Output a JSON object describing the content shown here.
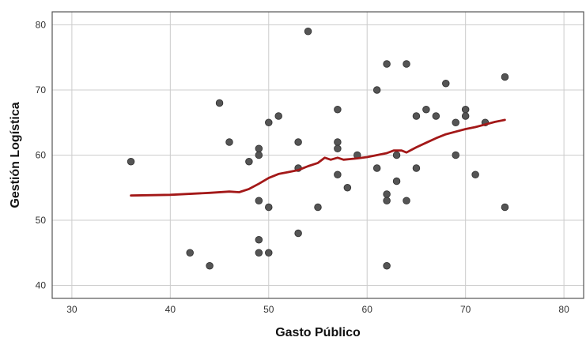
{
  "chart_data": {
    "type": "scatter",
    "xlabel": "Gasto Público",
    "ylabel": "Gestión Logística",
    "xlim": [
      28,
      82
    ],
    "ylim": [
      38,
      82
    ],
    "x_ticks": [
      30,
      40,
      50,
      60,
      70,
      80
    ],
    "y_ticks": [
      40,
      50,
      60,
      70,
      80
    ],
    "grid": true,
    "legend": "none",
    "colors": {
      "points": "#555555",
      "fit_line": "#a31818",
      "grid": "#cccccc",
      "axis": "#555555"
    },
    "points": [
      {
        "x": 36,
        "y": 59
      },
      {
        "x": 42,
        "y": 45
      },
      {
        "x": 44,
        "y": 43
      },
      {
        "x": 45,
        "y": 68
      },
      {
        "x": 46,
        "y": 62
      },
      {
        "x": 48,
        "y": 59
      },
      {
        "x": 49,
        "y": 61
      },
      {
        "x": 49,
        "y": 60
      },
      {
        "x": 49,
        "y": 53
      },
      {
        "x": 49,
        "y": 47
      },
      {
        "x": 49,
        "y": 45
      },
      {
        "x": 50,
        "y": 65
      },
      {
        "x": 50,
        "y": 52
      },
      {
        "x": 50,
        "y": 45
      },
      {
        "x": 51,
        "y": 66
      },
      {
        "x": 53,
        "y": 62
      },
      {
        "x": 53,
        "y": 58
      },
      {
        "x": 53,
        "y": 48
      },
      {
        "x": 54,
        "y": 79
      },
      {
        "x": 55,
        "y": 52
      },
      {
        "x": 57,
        "y": 67
      },
      {
        "x": 57,
        "y": 62
      },
      {
        "x": 57,
        "y": 61
      },
      {
        "x": 57,
        "y": 57
      },
      {
        "x": 58,
        "y": 55
      },
      {
        "x": 59,
        "y": 60
      },
      {
        "x": 61,
        "y": 70
      },
      {
        "x": 61,
        "y": 58
      },
      {
        "x": 62,
        "y": 74
      },
      {
        "x": 62,
        "y": 54
      },
      {
        "x": 62,
        "y": 53
      },
      {
        "x": 62,
        "y": 43
      },
      {
        "x": 63,
        "y": 60
      },
      {
        "x": 63,
        "y": 56
      },
      {
        "x": 64,
        "y": 74
      },
      {
        "x": 64,
        "y": 53
      },
      {
        "x": 65,
        "y": 66
      },
      {
        "x": 65,
        "y": 58
      },
      {
        "x": 66,
        "y": 67
      },
      {
        "x": 67,
        "y": 66
      },
      {
        "x": 68,
        "y": 71
      },
      {
        "x": 69,
        "y": 65
      },
      {
        "x": 69,
        "y": 60
      },
      {
        "x": 70,
        "y": 67
      },
      {
        "x": 70,
        "y": 66
      },
      {
        "x": 71,
        "y": 57
      },
      {
        "x": 72,
        "y": 65
      },
      {
        "x": 74,
        "y": 72
      },
      {
        "x": 74,
        "y": 52
      }
    ],
    "fit_line": [
      {
        "x": 36,
        "y": 53.8
      },
      {
        "x": 40,
        "y": 53.9
      },
      {
        "x": 44,
        "y": 54.2
      },
      {
        "x": 46,
        "y": 54.4
      },
      {
        "x": 47,
        "y": 54.3
      },
      {
        "x": 48,
        "y": 54.8
      },
      {
        "x": 49,
        "y": 55.6
      },
      {
        "x": 50,
        "y": 56.5
      },
      {
        "x": 51,
        "y": 57.1
      },
      {
        "x": 52,
        "y": 57.4
      },
      {
        "x": 53,
        "y": 57.7
      },
      {
        "x": 54,
        "y": 58.3
      },
      {
        "x": 55,
        "y": 58.8
      },
      {
        "x": 55.7,
        "y": 59.6
      },
      {
        "x": 56.3,
        "y": 59.3
      },
      {
        "x": 57,
        "y": 59.6
      },
      {
        "x": 57.6,
        "y": 59.3
      },
      {
        "x": 58.3,
        "y": 59.4
      },
      {
        "x": 59,
        "y": 59.5
      },
      {
        "x": 60,
        "y": 59.7
      },
      {
        "x": 61,
        "y": 60.0
      },
      {
        "x": 62,
        "y": 60.3
      },
      {
        "x": 62.7,
        "y": 60.7
      },
      {
        "x": 63.5,
        "y": 60.7
      },
      {
        "x": 64,
        "y": 60.4
      },
      {
        "x": 64.5,
        "y": 60.8
      },
      {
        "x": 65,
        "y": 61.2
      },
      {
        "x": 66,
        "y": 61.9
      },
      {
        "x": 67,
        "y": 62.6
      },
      {
        "x": 68,
        "y": 63.2
      },
      {
        "x": 69,
        "y": 63.6
      },
      {
        "x": 70,
        "y": 64.0
      },
      {
        "x": 71,
        "y": 64.3
      },
      {
        "x": 72,
        "y": 64.7
      },
      {
        "x": 73,
        "y": 65.1
      },
      {
        "x": 74,
        "y": 65.4
      }
    ]
  }
}
